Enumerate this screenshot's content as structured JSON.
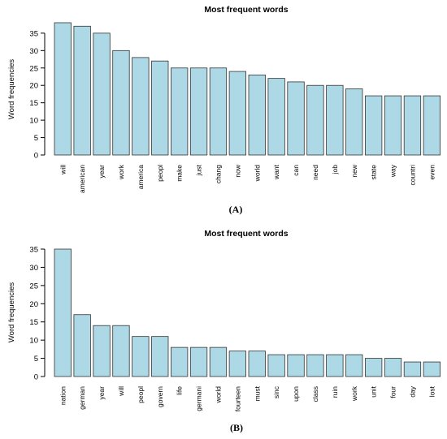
{
  "chart_data": [
    {
      "type": "bar",
      "panel_label": "(A)",
      "title": "Most frequent words",
      "xlabel": "",
      "ylabel": "Word frequencies",
      "ylim": [
        0,
        38
      ],
      "yticks": [
        0,
        5,
        10,
        15,
        20,
        25,
        30,
        35
      ],
      "bar_color": "#add8e6",
      "grid": false,
      "categories": [
        "will",
        "american",
        "year",
        "work",
        "america",
        "peopl",
        "make",
        "just",
        "chang",
        "now",
        "world",
        "want",
        "can",
        "need",
        "job",
        "new",
        "state",
        "way",
        "countri",
        "even"
      ],
      "values": [
        38,
        37,
        35,
        30,
        28,
        27,
        25,
        25,
        25,
        24,
        23,
        22,
        21,
        20,
        20,
        19,
        17,
        17,
        17,
        17
      ]
    },
    {
      "type": "bar",
      "panel_label": "(B)",
      "title": "Most frequent words",
      "xlabel": "",
      "ylabel": "Word frequencies",
      "ylim": [
        0,
        35
      ],
      "yticks": [
        0,
        5,
        10,
        15,
        20,
        25,
        30,
        35
      ],
      "bar_color": "#add8e6",
      "grid": false,
      "categories": [
        "nation",
        "german",
        "year",
        "will",
        "peopl",
        "govern",
        "life",
        "germani",
        "world",
        "fourteen",
        "must",
        "sinc",
        "upon",
        "class",
        "ruin",
        "work",
        "unit",
        "four",
        "day",
        "lost"
      ],
      "values": [
        35,
        17,
        14,
        14,
        11,
        11,
        8,
        8,
        8,
        7,
        7,
        6,
        6,
        6,
        6,
        6,
        5,
        5,
        4,
        4
      ]
    }
  ]
}
